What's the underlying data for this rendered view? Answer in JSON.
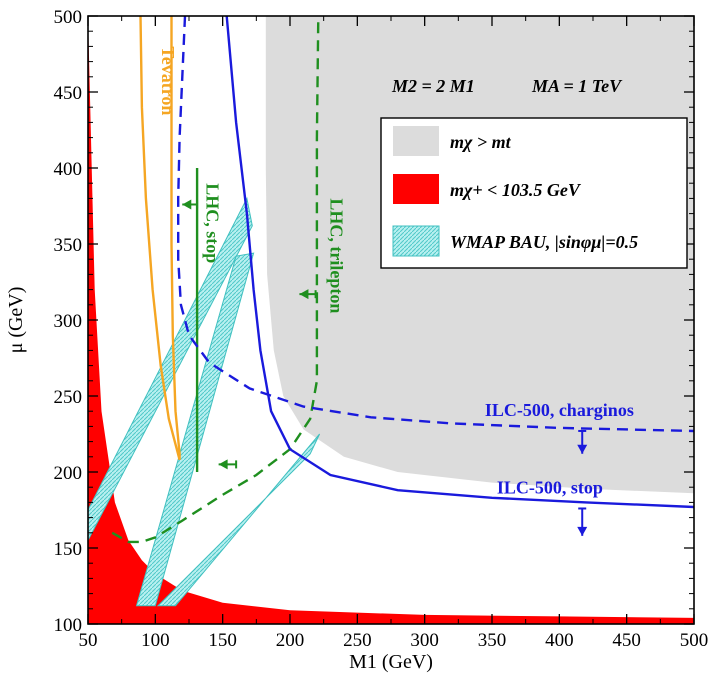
{
  "chart_data": {
    "type": "line",
    "title": "",
    "xlabel": "M1 (GeV)",
    "ylabel": "μ (GeV)",
    "xlim": [
      50,
      500
    ],
    "ylim": [
      100,
      500
    ],
    "xticks": [
      50,
      100,
      150,
      200,
      250,
      300,
      350,
      400,
      450,
      500
    ],
    "yticks": [
      100,
      150,
      200,
      250,
      300,
      350,
      400,
      450,
      500
    ],
    "grid": false,
    "legend_position": "top-right",
    "parameters_text": [
      "M2 = 2 M1",
      "MA = 1 TeV"
    ],
    "legend": [
      {
        "label": "mχ > mt",
        "style": "fill",
        "color": "#dcdcdc"
      },
      {
        "label": "mχ+ < 103.5 GeV",
        "style": "fill",
        "color": "#ff0000"
      },
      {
        "label": "WMAP BAU, |sinφμ|=0.5",
        "style": "hatched",
        "color": "#60d0d0"
      }
    ],
    "colors": {
      "gray_region": "#dcdcdc",
      "red_region": "#ff0000",
      "wmap_band": "#9fe8e8",
      "wmap_edge": "#40c0c0",
      "tevatron": "#f5a623",
      "lhc": "#1f8f1f",
      "ilc": "#1a1adc"
    },
    "regions": {
      "gray_boundary": [
        [
          182,
          500
        ],
        [
          182,
          400
        ],
        [
          183,
          330
        ],
        [
          188,
          280
        ],
        [
          195,
          250
        ],
        [
          210,
          228
        ],
        [
          240,
          210
        ],
        [
          280,
          200
        ],
        [
          350,
          193
        ],
        [
          420,
          189
        ],
        [
          500,
          186
        ],
        [
          500,
          500
        ]
      ],
      "red_boundary": [
        [
          50,
          500
        ],
        [
          55,
          320
        ],
        [
          60,
          240
        ],
        [
          70,
          180
        ],
        [
          80,
          155
        ],
        [
          90,
          142
        ],
        [
          100,
          133
        ],
        [
          120,
          122
        ],
        [
          150,
          114
        ],
        [
          200,
          109
        ],
        [
          300,
          106
        ],
        [
          400,
          105
        ],
        [
          500,
          104
        ]
      ],
      "wmap_bands": [
        [
          [
            50,
            175
          ],
          [
            168,
            380
          ],
          [
            172,
            362
          ],
          [
            50,
            155
          ]
        ],
        [
          [
            86,
            112
          ],
          [
            160,
            342
          ],
          [
            173,
            344
          ],
          [
            100,
            112
          ]
        ],
        [
          [
            115,
            112
          ],
          [
            222,
            225
          ],
          [
            215,
            212
          ],
          [
            102,
            112
          ]
        ]
      ]
    },
    "series": [
      {
        "name": "Tevatron",
        "color": "#f5a623",
        "dash": false,
        "points": [
          [
            89,
            500
          ],
          [
            90,
            440
          ],
          [
            93,
            380
          ],
          [
            98,
            320
          ],
          [
            104,
            270
          ],
          [
            110,
            235
          ],
          [
            118,
            208
          ],
          [
            118,
            212
          ],
          [
            115,
            240
          ],
          [
            113,
            290
          ],
          [
            112,
            350
          ],
          [
            112,
            420
          ],
          [
            112,
            500
          ]
        ]
      },
      {
        "name": "LHC, stop",
        "color": "#1f8f1f",
        "dash": false,
        "points": [
          [
            131,
            400
          ],
          [
            131,
            200
          ]
        ]
      },
      {
        "name": "LHC, trilepton",
        "color": "#1f8f1f",
        "dash": true,
        "points": [
          [
            68,
            160
          ],
          [
            80,
            154
          ],
          [
            90,
            154
          ],
          [
            100,
            157
          ],
          [
            120,
            168
          ],
          [
            150,
            185
          ],
          [
            175,
            198
          ],
          [
            200,
            215
          ],
          [
            215,
            235
          ],
          [
            220,
            260
          ],
          [
            220,
            340
          ],
          [
            220,
            420
          ],
          [
            221,
            500
          ]
        ]
      },
      {
        "name": "ILC-500, charginos",
        "color": "#1a1adc",
        "dash": true,
        "points": [
          [
            122,
            500
          ],
          [
            120,
            460
          ],
          [
            118,
            420
          ],
          [
            117,
            380
          ],
          [
            117,
            340
          ],
          [
            119,
            310
          ],
          [
            125,
            290
          ],
          [
            140,
            272
          ],
          [
            170,
            255
          ],
          [
            210,
            243
          ],
          [
            260,
            236
          ],
          [
            320,
            232
          ],
          [
            400,
            229
          ],
          [
            500,
            227
          ]
        ]
      },
      {
        "name": "ILC-500, stop",
        "color": "#1a1adc",
        "dash": false,
        "points": [
          [
            153,
            500
          ],
          [
            160,
            430
          ],
          [
            168,
            370
          ],
          [
            173,
            320
          ],
          [
            178,
            280
          ],
          [
            186,
            240
          ],
          [
            200,
            215
          ],
          [
            230,
            198
          ],
          [
            280,
            188
          ],
          [
            350,
            183
          ],
          [
            420,
            180
          ],
          [
            500,
            177
          ]
        ]
      }
    ],
    "annotations": [
      {
        "text": "Tevatron",
        "color": "#f5a623",
        "x": 105,
        "y": 480,
        "rotate": 90
      },
      {
        "text": "LHC, stop",
        "color": "#1f8f1f",
        "x": 138,
        "y": 390,
        "rotate": 90
      },
      {
        "text": "LHC, trilepton",
        "color": "#1f8f1f",
        "x": 230,
        "y": 380,
        "rotate": 90
      },
      {
        "text": "ILC-500, charginos",
        "color": "#1a1adc",
        "x": 400,
        "y": 237,
        "rotate": 0
      },
      {
        "text": "ILC-500, stop",
        "color": "#1a1adc",
        "x": 393,
        "y": 186,
        "rotate": 0
      }
    ],
    "arrows": [
      {
        "color": "#1f8f1f",
        "from": [
          131,
          376
        ],
        "to": [
          120,
          376
        ]
      },
      {
        "color": "#1f8f1f",
        "from": [
          219,
          317
        ],
        "to": [
          207,
          317
        ]
      },
      {
        "color": "#1f8f1f",
        "from": [
          160,
          205
        ],
        "to": [
          147,
          205
        ]
      },
      {
        "color": "#1a1adc",
        "from": [
          417,
          227
        ],
        "to": [
          417,
          212
        ]
      },
      {
        "color": "#1a1adc",
        "from": [
          417,
          176
        ],
        "to": [
          417,
          158
        ]
      }
    ]
  }
}
